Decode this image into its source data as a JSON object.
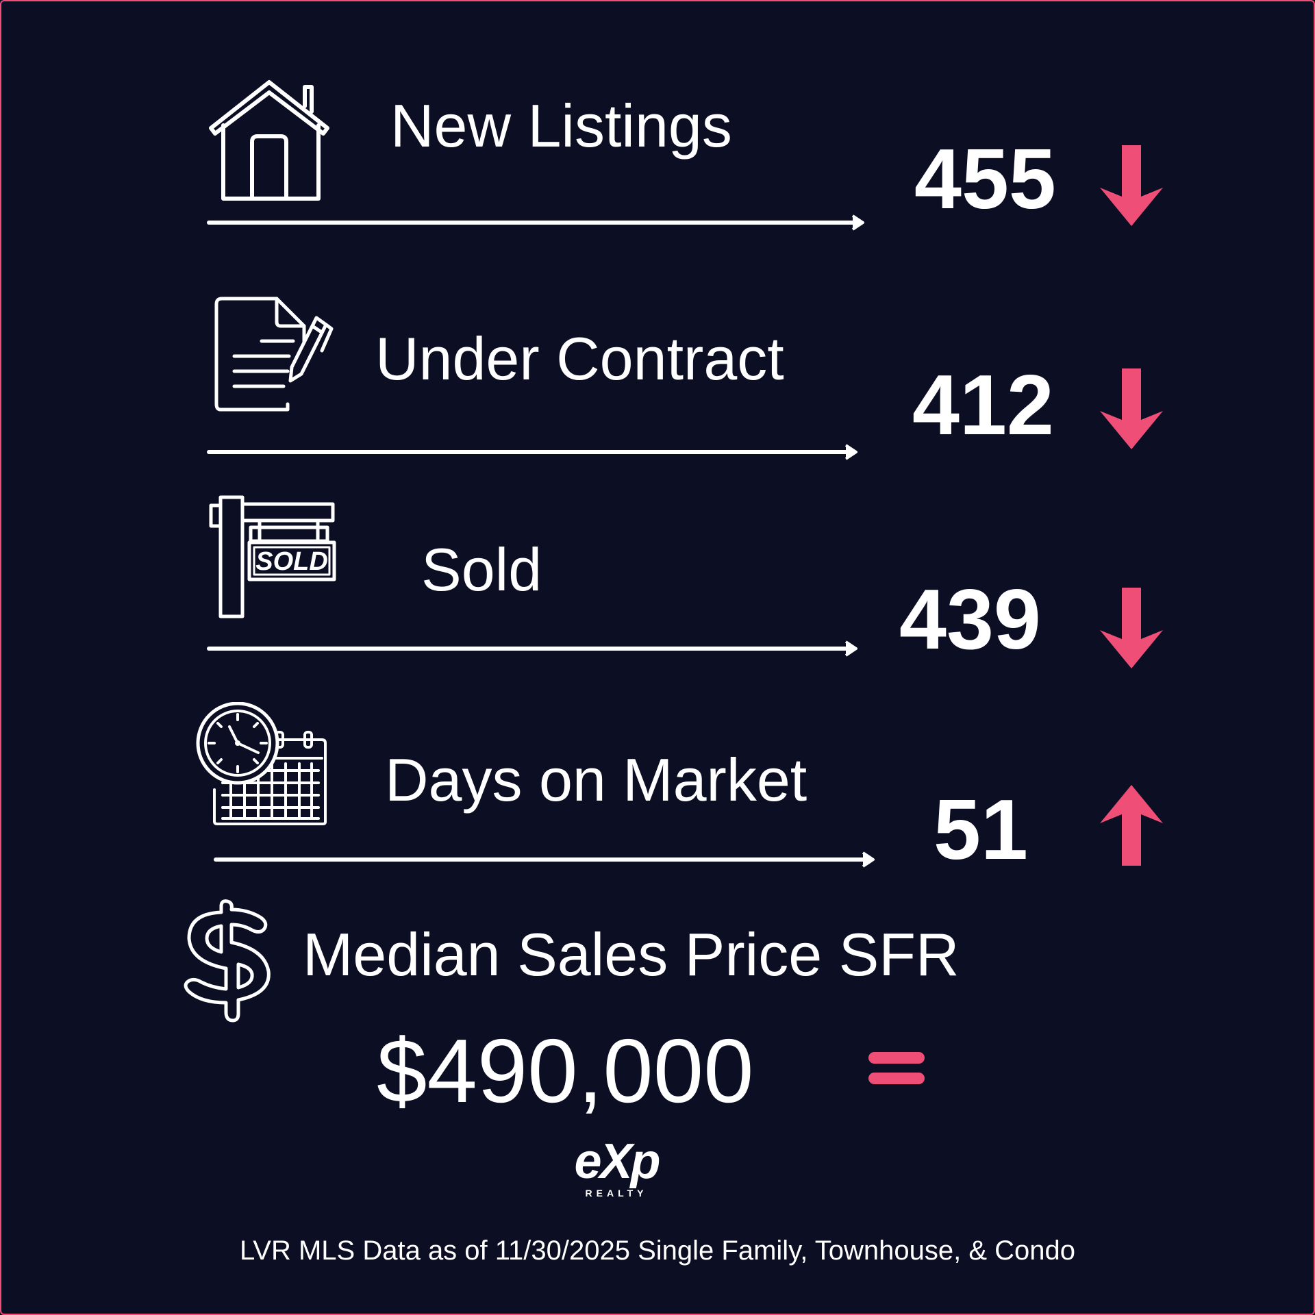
{
  "colors": {
    "background": "#0c0e23",
    "accent": "#ef4f76",
    "text": "#ffffff"
  },
  "stats": [
    {
      "label": "New Listings",
      "value": "455",
      "trend": "down",
      "icon": "house-icon"
    },
    {
      "label": "Under Contract",
      "value": "412",
      "trend": "down",
      "icon": "contract-pen-icon"
    },
    {
      "label": "Sold",
      "value": "439",
      "trend": "down",
      "icon": "sold-sign-icon"
    },
    {
      "label": "Days on Market",
      "value": "51",
      "trend": "up",
      "icon": "clock-calendar-icon"
    }
  ],
  "median": {
    "label": "Median Sales Price SFR",
    "value": "$490,000",
    "trend": "equal",
    "icon": "dollar-icon"
  },
  "logo": {
    "text": "eXp",
    "subtext": "REALTY"
  },
  "footer": "LVR MLS Data as of 11/30/2025 Single Family, Townhouse, & Condo"
}
